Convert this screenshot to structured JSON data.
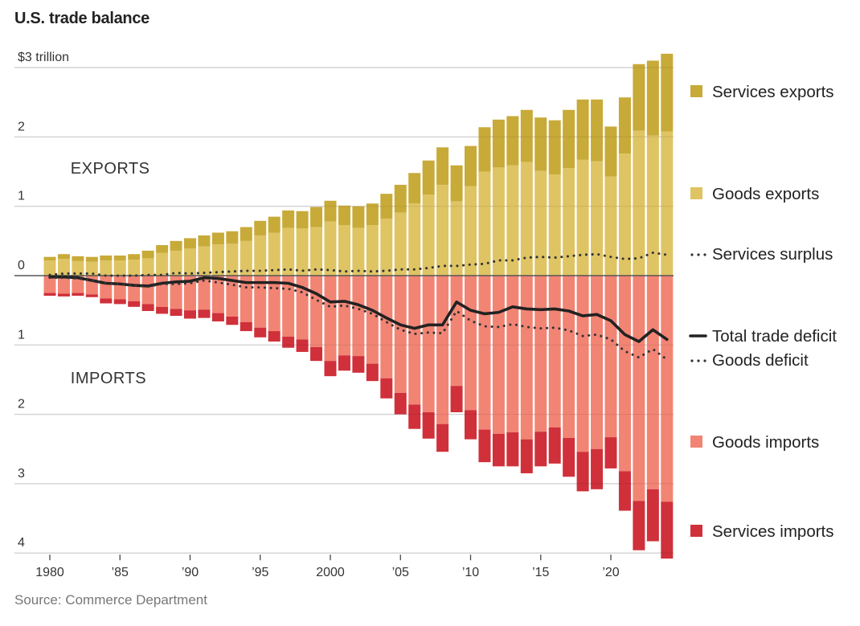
{
  "title": "U.S. trade balance",
  "source": "Source: Commerce Department",
  "chart_data": {
    "type": "bar",
    "title": "U.S. trade balance",
    "unit": "$ trillion",
    "xlabel": "",
    "ylabel": "",
    "ylim": [
      -4.1,
      3.2
    ],
    "grid": true,
    "legend_position": "right",
    "y_ticks": [
      {
        "value": 3,
        "label": "$3 trillion"
      },
      {
        "value": 2,
        "label": "2"
      },
      {
        "value": 1,
        "label": "1"
      },
      {
        "value": 0,
        "label": "0"
      },
      {
        "value": -1,
        "label": "1"
      },
      {
        "value": -2,
        "label": "2"
      },
      {
        "value": -3,
        "label": "3"
      },
      {
        "value": -4,
        "label": "4"
      }
    ],
    "x_ticks": [
      {
        "value": 1980,
        "label": "1980"
      },
      {
        "value": 1985,
        "label": "’85"
      },
      {
        "value": 1990,
        "label": "’90"
      },
      {
        "value": 1995,
        "label": "’95"
      },
      {
        "value": 2000,
        "label": "2000"
      },
      {
        "value": 2005,
        "label": "’05"
      },
      {
        "value": 2010,
        "label": "’10"
      },
      {
        "value": 2015,
        "label": "’15"
      },
      {
        "value": 2020,
        "label": "’20"
      }
    ],
    "annotations": [
      {
        "text": "EXPORTS",
        "x": 1984,
        "y": 1.47
      },
      {
        "text": "IMPORTS",
        "x": 1984,
        "y": -1.55
      }
    ],
    "x": [
      1980,
      1981,
      1982,
      1983,
      1984,
      1985,
      1986,
      1987,
      1988,
      1989,
      1990,
      1991,
      1992,
      1993,
      1994,
      1995,
      1996,
      1997,
      1998,
      1999,
      2000,
      2001,
      2002,
      2003,
      2004,
      2005,
      2006,
      2007,
      2008,
      2009,
      2010,
      2011,
      2012,
      2013,
      2014,
      2015,
      2016,
      2017,
      2018,
      2019,
      2020,
      2021,
      2022,
      2023,
      2024
    ],
    "series": [
      {
        "name": "Goods exports",
        "kind": "bar",
        "stack": "exports",
        "color": "#dfc463",
        "values": [
          0.22,
          0.24,
          0.21,
          0.2,
          0.22,
          0.22,
          0.23,
          0.25,
          0.33,
          0.36,
          0.39,
          0.42,
          0.45,
          0.46,
          0.5,
          0.58,
          0.62,
          0.69,
          0.68,
          0.7,
          0.78,
          0.73,
          0.69,
          0.73,
          0.82,
          0.91,
          1.04,
          1.17,
          1.31,
          1.07,
          1.29,
          1.5,
          1.56,
          1.59,
          1.64,
          1.51,
          1.46,
          1.55,
          1.67,
          1.65,
          1.43,
          1.76,
          2.09,
          2.02,
          2.08
        ]
      },
      {
        "name": "Services exports",
        "kind": "bar",
        "stack": "exports",
        "color": "#c8aa38",
        "values": [
          0.05,
          0.07,
          0.07,
          0.07,
          0.07,
          0.07,
          0.08,
          0.11,
          0.11,
          0.14,
          0.15,
          0.16,
          0.17,
          0.18,
          0.2,
          0.21,
          0.23,
          0.25,
          0.25,
          0.29,
          0.3,
          0.28,
          0.31,
          0.31,
          0.36,
          0.4,
          0.44,
          0.49,
          0.54,
          0.52,
          0.58,
          0.64,
          0.69,
          0.71,
          0.75,
          0.77,
          0.78,
          0.84,
          0.87,
          0.89,
          0.72,
          0.81,
          0.96,
          1.08,
          1.12
        ]
      },
      {
        "name": "Goods imports",
        "kind": "bar",
        "stack": "imports",
        "color": "#f28474",
        "values": [
          0.25,
          0.26,
          0.25,
          0.27,
          0.33,
          0.34,
          0.37,
          0.41,
          0.45,
          0.48,
          0.5,
          0.49,
          0.54,
          0.59,
          0.67,
          0.75,
          0.8,
          0.88,
          0.92,
          1.03,
          1.23,
          1.15,
          1.16,
          1.27,
          1.48,
          1.69,
          1.86,
          1.97,
          2.14,
          1.59,
          1.94,
          2.22,
          2.28,
          2.26,
          2.36,
          2.25,
          2.19,
          2.34,
          2.54,
          2.5,
          2.33,
          2.82,
          3.25,
          3.08,
          3.26
        ]
      },
      {
        "name": "Services imports",
        "kind": "bar",
        "stack": "imports",
        "color": "#d0303a",
        "values": [
          0.04,
          0.04,
          0.04,
          0.04,
          0.07,
          0.07,
          0.08,
          0.1,
          0.1,
          0.1,
          0.12,
          0.12,
          0.12,
          0.12,
          0.13,
          0.14,
          0.15,
          0.16,
          0.18,
          0.2,
          0.22,
          0.22,
          0.24,
          0.25,
          0.29,
          0.31,
          0.35,
          0.38,
          0.4,
          0.38,
          0.42,
          0.47,
          0.47,
          0.49,
          0.49,
          0.5,
          0.52,
          0.56,
          0.57,
          0.58,
          0.45,
          0.57,
          0.71,
          0.75,
          0.82
        ]
      },
      {
        "name": "Services surplus",
        "kind": "line",
        "style": "dotted",
        "color": "#333333",
        "values": [
          0.01,
          0.03,
          0.03,
          0.03,
          0.0,
          0.0,
          0.0,
          0.01,
          0.01,
          0.04,
          0.03,
          0.04,
          0.05,
          0.06,
          0.07,
          0.07,
          0.08,
          0.09,
          0.07,
          0.09,
          0.08,
          0.06,
          0.07,
          0.06,
          0.07,
          0.09,
          0.09,
          0.11,
          0.14,
          0.14,
          0.16,
          0.17,
          0.22,
          0.22,
          0.26,
          0.27,
          0.26,
          0.28,
          0.3,
          0.31,
          0.27,
          0.24,
          0.25,
          0.33,
          0.3
        ]
      },
      {
        "name": "Total trade deficit",
        "kind": "line",
        "style": "solid",
        "color": "#222222",
        "values": [
          -0.02,
          -0.02,
          -0.03,
          -0.07,
          -0.11,
          -0.12,
          -0.14,
          -0.15,
          -0.11,
          -0.09,
          -0.08,
          -0.03,
          -0.04,
          -0.07,
          -0.1,
          -0.1,
          -0.1,
          -0.11,
          -0.17,
          -0.26,
          -0.38,
          -0.37,
          -0.42,
          -0.5,
          -0.61,
          -0.71,
          -0.76,
          -0.71,
          -0.71,
          -0.38,
          -0.5,
          -0.55,
          -0.53,
          -0.45,
          -0.48,
          -0.49,
          -0.48,
          -0.51,
          -0.58,
          -0.56,
          -0.65,
          -0.85,
          -0.95,
          -0.78,
          -0.92
        ]
      },
      {
        "name": "Goods deficit",
        "kind": "line",
        "style": "dotted",
        "color": "#333333",
        "values": [
          -0.03,
          -0.03,
          -0.04,
          -0.07,
          -0.11,
          -0.12,
          -0.14,
          -0.16,
          -0.12,
          -0.12,
          -0.11,
          -0.07,
          -0.1,
          -0.13,
          -0.17,
          -0.17,
          -0.18,
          -0.19,
          -0.24,
          -0.35,
          -0.45,
          -0.43,
          -0.48,
          -0.55,
          -0.67,
          -0.78,
          -0.84,
          -0.82,
          -0.83,
          -0.51,
          -0.65,
          -0.73,
          -0.74,
          -0.7,
          -0.74,
          -0.76,
          -0.75,
          -0.79,
          -0.87,
          -0.85,
          -0.92,
          -1.09,
          -1.18,
          -1.06,
          -1.21
        ]
      }
    ],
    "legend": [
      {
        "label": "Services exports",
        "marker": "square",
        "color": "#c8aa38"
      },
      {
        "label": "Goods exports",
        "marker": "square",
        "color": "#dfc463"
      },
      {
        "label": "Services surplus",
        "marker": "dotted",
        "color": "#333333"
      },
      {
        "label": "Total trade deficit",
        "marker": "solid",
        "color": "#222222"
      },
      {
        "label": "Goods deficit",
        "marker": "dotted",
        "color": "#333333"
      },
      {
        "label": "Goods imports",
        "marker": "square",
        "color": "#f28474"
      },
      {
        "label": "Services imports",
        "marker": "square",
        "color": "#d0303a"
      }
    ]
  }
}
